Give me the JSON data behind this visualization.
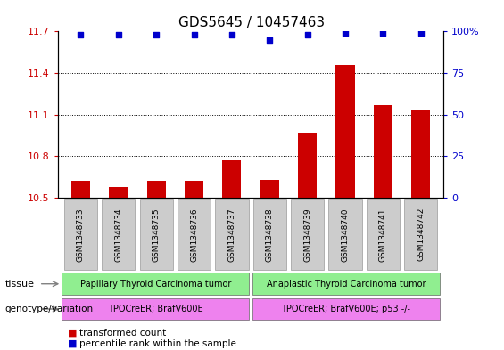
{
  "title": "GDS5645 / 10457463",
  "samples": [
    "GSM1348733",
    "GSM1348734",
    "GSM1348735",
    "GSM1348736",
    "GSM1348737",
    "GSM1348738",
    "GSM1348739",
    "GSM1348740",
    "GSM1348741",
    "GSM1348742"
  ],
  "bar_values": [
    10.62,
    10.58,
    10.62,
    10.62,
    10.77,
    10.63,
    10.97,
    11.46,
    11.17,
    11.13
  ],
  "percentile_values": [
    98,
    98,
    98,
    98,
    98,
    95,
    98,
    99,
    99,
    99
  ],
  "bar_color": "#cc0000",
  "dot_color": "#0000cc",
  "ylim_left": [
    10.5,
    11.7
  ],
  "ylim_right": [
    0,
    100
  ],
  "yticks_left": [
    10.5,
    10.8,
    11.1,
    11.4,
    11.7
  ],
  "ytick_labels_left": [
    "10.5",
    "10.8",
    "11.1",
    "11.4",
    "11.7"
  ],
  "yticks_right": [
    0,
    25,
    50,
    75,
    100
  ],
  "ytick_labels_right": [
    "0",
    "25",
    "50",
    "75",
    "100%"
  ],
  "tissue_groups": [
    {
      "label": "Papillary Thyroid Carcinoma tumor",
      "start": 0,
      "end": 5,
      "color": "#90ee90"
    },
    {
      "label": "Anaplastic Thyroid Carcinoma tumor",
      "start": 5,
      "end": 10,
      "color": "#90ee90"
    }
  ],
  "genotype_groups": [
    {
      "label": "TPOCreER; BrafV600E",
      "start": 0,
      "end": 5,
      "color": "#ee82ee"
    },
    {
      "label": "TPOCreER; BrafV600E; p53 -/-",
      "start": 5,
      "end": 10,
      "color": "#ee82ee"
    }
  ],
  "tissue_label": "tissue",
  "genotype_label": "genotype/variation",
  "legend_items": [
    {
      "color": "#cc0000",
      "label": "transformed count"
    },
    {
      "color": "#0000cc",
      "label": "percentile rank within the sample"
    }
  ],
  "background_color": "#ffffff",
  "plot_bg_color": "#ffffff",
  "bar_width": 0.5,
  "title_fontsize": 11,
  "tick_fontsize": 8,
  "sample_fontsize": 6.5,
  "label_fontsize": 8,
  "box_color": "#cccccc",
  "box_edge_color": "#999999"
}
